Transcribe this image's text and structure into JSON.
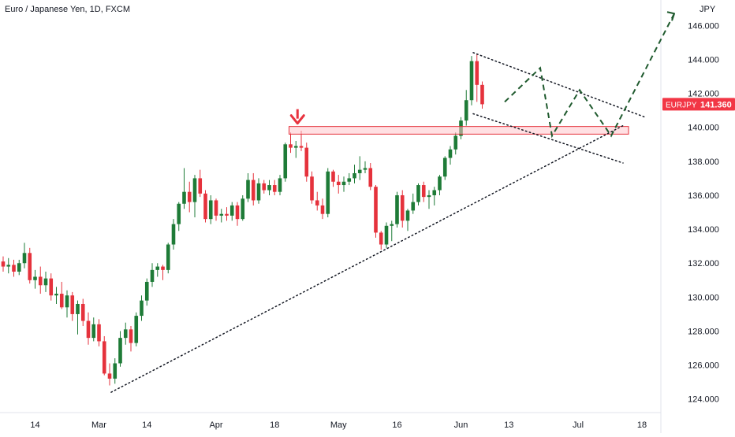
{
  "header": {
    "title": "Euro / Japanese Yen, 1D, FXCM"
  },
  "price_axis": {
    "currency": "JPY",
    "ticks": [
      "146.000",
      "144.000",
      "142.000",
      "140.000",
      "138.000",
      "136.000",
      "134.000",
      "132.000",
      "130.000",
      "128.000",
      "126.000",
      "124.000"
    ],
    "symbol_tag": "EURJPY",
    "last_price": "141.360"
  },
  "time_axis": {
    "ticks": [
      "14",
      "Mar",
      "14",
      "Apr",
      "18",
      "May",
      "16",
      "Jun",
      "13",
      "Jul",
      "18"
    ]
  },
  "colors": {
    "up": "#1e7b37",
    "down": "#e5323c",
    "resistance_zone": "#ffc7cc",
    "arrow": "#e8333f",
    "price_tag": "#f23645"
  },
  "chart_data": {
    "type": "candlestick",
    "title": "Euro / Japanese Yen, 1D, FXCM",
    "ylabel": "JPY",
    "ylim": [
      123.2,
      147.5
    ],
    "x_tick_labels": [
      "14",
      "Mar",
      "14",
      "Apr",
      "18",
      "May",
      "16",
      "Jun",
      "13",
      "Jul",
      "18"
    ],
    "y_tick_labels": [
      "124.000",
      "126.000",
      "128.000",
      "130.000",
      "132.000",
      "134.000",
      "136.000",
      "138.000",
      "140.000",
      "142.000",
      "144.000",
      "146.000"
    ],
    "ohlc": [
      [
        132.1,
        132.4,
        131.5,
        131.8
      ],
      [
        131.8,
        132.3,
        131.4,
        131.9
      ],
      [
        131.9,
        132.2,
        131.2,
        131.5
      ],
      [
        131.5,
        132.2,
        131.3,
        132.0
      ],
      [
        132.0,
        133.2,
        131.7,
        132.6
      ],
      [
        132.6,
        132.9,
        130.8,
        131.0
      ],
      [
        131.0,
        131.6,
        130.5,
        131.2
      ],
      [
        131.2,
        131.8,
        130.2,
        130.7
      ],
      [
        130.7,
        131.5,
        130.3,
        131.1
      ],
      [
        131.1,
        131.4,
        129.8,
        130.1
      ],
      [
        130.1,
        130.6,
        129.6,
        130.2
      ],
      [
        130.2,
        130.9,
        129.3,
        129.4
      ],
      [
        129.4,
        130.4,
        128.8,
        130.1
      ],
      [
        130.1,
        130.3,
        128.6,
        129.0
      ],
      [
        129.0,
        129.8,
        127.8,
        129.6
      ],
      [
        129.6,
        129.9,
        128.3,
        128.6
      ],
      [
        128.6,
        129.1,
        127.2,
        127.6
      ],
      [
        127.6,
        128.8,
        127.4,
        128.4
      ],
      [
        128.4,
        128.7,
        127.1,
        127.4
      ],
      [
        127.4,
        127.7,
        125.4,
        125.5
      ],
      [
        125.5,
        126.1,
        124.8,
        125.2
      ],
      [
        125.2,
        126.4,
        124.9,
        126.1
      ],
      [
        126.1,
        128.0,
        125.9,
        127.6
      ],
      [
        127.6,
        128.5,
        127.2,
        128.1
      ],
      [
        128.1,
        128.3,
        126.8,
        127.3
      ],
      [
        127.3,
        129.1,
        127.1,
        128.9
      ],
      [
        128.9,
        130.1,
        128.6,
        129.8
      ],
      [
        129.8,
        131.1,
        129.5,
        130.9
      ],
      [
        130.9,
        132.0,
        130.6,
        131.6
      ],
      [
        131.6,
        132.0,
        131.2,
        131.8
      ],
      [
        131.8,
        131.9,
        131.0,
        131.6
      ],
      [
        131.6,
        133.2,
        131.4,
        133.1
      ],
      [
        133.1,
        134.6,
        132.8,
        134.3
      ],
      [
        134.3,
        135.6,
        133.9,
        135.5
      ],
      [
        135.5,
        137.6,
        135.2,
        136.2
      ],
      [
        136.2,
        136.8,
        135.0,
        135.6
      ],
      [
        135.6,
        137.2,
        134.7,
        137.0
      ],
      [
        137.0,
        137.5,
        135.9,
        136.1
      ],
      [
        136.1,
        136.3,
        134.4,
        134.6
      ],
      [
        134.6,
        136.0,
        134.3,
        135.7
      ],
      [
        135.7,
        135.8,
        134.5,
        134.8
      ],
      [
        134.8,
        135.2,
        134.4,
        134.9
      ],
      [
        134.9,
        135.3,
        134.5,
        134.8
      ],
      [
        134.8,
        135.6,
        134.5,
        135.4
      ],
      [
        135.4,
        135.6,
        134.2,
        134.6
      ],
      [
        134.6,
        136.0,
        134.5,
        135.8
      ],
      [
        135.8,
        137.3,
        135.6,
        136.9
      ],
      [
        136.9,
        137.3,
        135.4,
        135.7
      ],
      [
        135.7,
        137.0,
        135.5,
        136.7
      ],
      [
        136.7,
        136.9,
        136.1,
        136.3
      ],
      [
        136.3,
        136.9,
        136.0,
        136.6
      ],
      [
        136.6,
        136.9,
        136.0,
        136.2
      ],
      [
        136.2,
        137.2,
        136.0,
        137.0
      ],
      [
        137.0,
        139.1,
        136.8,
        139.0
      ],
      [
        139.0,
        139.7,
        138.5,
        138.8
      ],
      [
        138.8,
        139.2,
        138.2,
        138.9
      ],
      [
        138.9,
        139.8,
        138.6,
        138.8
      ],
      [
        138.8,
        139.1,
        136.8,
        137.1
      ],
      [
        137.1,
        137.4,
        135.5,
        135.7
      ],
      [
        135.7,
        136.2,
        135.1,
        135.4
      ],
      [
        135.4,
        135.8,
        134.6,
        134.9
      ],
      [
        134.9,
        137.6,
        134.7,
        137.4
      ],
      [
        137.4,
        137.5,
        136.5,
        136.8
      ],
      [
        136.8,
        137.2,
        136.1,
        136.6
      ],
      [
        136.6,
        137.1,
        136.2,
        136.8
      ],
      [
        136.8,
        137.3,
        136.6,
        137.0
      ],
      [
        137.0,
        137.8,
        136.7,
        137.3
      ],
      [
        137.3,
        138.3,
        136.9,
        137.5
      ],
      [
        137.5,
        138.0,
        137.3,
        137.6
      ],
      [
        137.6,
        137.9,
        136.3,
        136.5
      ],
      [
        136.5,
        136.6,
        133.5,
        133.8
      ],
      [
        133.8,
        133.9,
        132.8,
        133.1
      ],
      [
        133.1,
        134.4,
        132.9,
        134.2
      ],
      [
        134.2,
        134.5,
        133.3,
        134.3
      ],
      [
        134.3,
        136.2,
        134.1,
        136.0
      ],
      [
        136.0,
        136.3,
        134.1,
        134.5
      ],
      [
        134.5,
        135.2,
        133.9,
        135.1
      ],
      [
        135.1,
        136.1,
        134.9,
        135.6
      ],
      [
        135.6,
        136.7,
        135.4,
        136.6
      ],
      [
        136.6,
        136.8,
        135.6,
        135.9
      ],
      [
        135.9,
        136.3,
        135.2,
        136.0
      ],
      [
        136.0,
        136.5,
        135.4,
        136.3
      ],
      [
        136.3,
        137.2,
        136.0,
        137.1
      ],
      [
        137.1,
        138.3,
        136.9,
        138.2
      ],
      [
        138.2,
        138.9,
        137.8,
        138.7
      ],
      [
        138.7,
        139.7,
        138.4,
        139.5
      ],
      [
        139.5,
        140.6,
        139.3,
        140.4
      ],
      [
        140.4,
        142.2,
        140.1,
        141.6
      ],
      [
        141.6,
        144.2,
        141.3,
        143.9
      ],
      [
        143.9,
        144.3,
        141.5,
        142.5
      ],
      [
        142.5,
        142.7,
        141.1,
        141.36
      ]
    ],
    "horizontal_zone": [
      139.6,
      140.05
    ],
    "trendlines": [
      {
        "style": "dotted",
        "from": [
          0,
          124.4
        ],
        "to": [
          1,
          140.1
        ]
      },
      {
        "style": "dotted",
        "from": [
          0,
          144.4
        ],
        "to": [
          1,
          140.6
        ]
      },
      {
        "style": "dotted",
        "from": [
          0,
          140.8
        ],
        "to": [
          1,
          137.9
        ]
      }
    ],
    "projected_path": [
      141.5,
      143.5,
      139.5,
      142.2,
      139.5,
      146.7
    ],
    "last_price": 141.36
  }
}
